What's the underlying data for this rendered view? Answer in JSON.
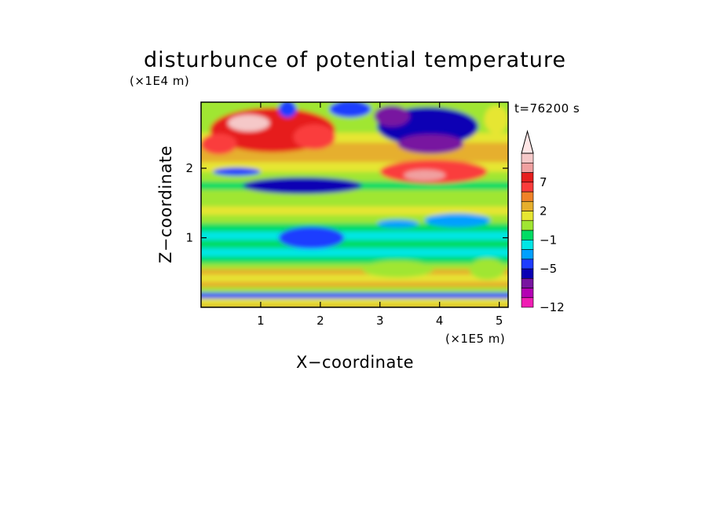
{
  "chart_data": {
    "type": "heatmap",
    "title": "disturbunce of potential temperature",
    "time_label": "t=76200 s",
    "xlabel": "X−coordinate",
    "ylabel": "Z−coordinate",
    "x_unit": "(×1E5 m)",
    "y_unit": "(×1E4 m)",
    "xlim": [
      0,
      5.15
    ],
    "ylim": [
      0,
      2.95
    ],
    "x_ticks": [
      1,
      2,
      3,
      4,
      5
    ],
    "x_tick_labels": [
      "1",
      "2",
      "3",
      "4",
      "5"
    ],
    "y_ticks": [
      1,
      2
    ],
    "y_tick_labels": [
      "1",
      "2"
    ],
    "colorbar": {
      "levels": [
        -12,
        -10,
        -8,
        -6,
        -5,
        -3,
        -2,
        -1,
        0,
        1,
        2,
        3,
        5,
        7,
        8,
        9,
        10
      ],
      "level_labels": [
        {
          "value": -12,
          "label": "−12"
        },
        {
          "value": -5,
          "label": "−5"
        },
        {
          "value": -1,
          "label": "−1"
        },
        {
          "value": 2,
          "label": "2"
        },
        {
          "value": 7,
          "label": "7"
        }
      ],
      "colors": [
        "#f01eb4",
        "#b400b4",
        "#7814a0",
        "#0a00b4",
        "#1e3cff",
        "#00a0ff",
        "#00e6e6",
        "#00dc64",
        "#a0e632",
        "#e6e632",
        "#e6af2d",
        "#f08228",
        "#fa3c3c",
        "#e61e1e",
        "#f0a0a0",
        "#f5c8c8"
      ],
      "extend_max_color": "#ffe6e6"
    },
    "bands": [
      {
        "z": 0.05,
        "value": 2.5
      },
      {
        "z": 0.14,
        "value": 1.5
      },
      {
        "z": 0.22,
        "value": -3.5
      },
      {
        "z": 0.3,
        "value": 0.5
      },
      {
        "z": 0.38,
        "value": 2.5
      },
      {
        "z": 0.48,
        "value": 1.5
      },
      {
        "z": 0.56,
        "value": 2.5
      },
      {
        "z": 0.64,
        "value": 0.5
      },
      {
        "z": 0.74,
        "value": -0.5
      },
      {
        "z": 0.86,
        "value": -1.5
      },
      {
        "z": 0.98,
        "value": -0.5
      },
      {
        "z": 1.1,
        "value": -1.5
      },
      {
        "z": 1.22,
        "value": -0.5
      },
      {
        "z": 1.34,
        "value": 0.5
      },
      {
        "z": 1.46,
        "value": 1.5
      },
      {
        "z": 1.58,
        "value": 0.5
      },
      {
        "z": 1.7,
        "value": 0.5
      },
      {
        "z": 1.82,
        "value": -0.5
      },
      {
        "z": 1.96,
        "value": 0.5
      },
      {
        "z": 2.1,
        "value": 1.5
      },
      {
        "z": 2.24,
        "value": 2.5
      },
      {
        "z": 2.38,
        "value": 2.5
      },
      {
        "z": 2.52,
        "value": 1.5
      },
      {
        "z": 2.66,
        "value": 0.5
      },
      {
        "z": 2.8,
        "value": 0.5
      },
      {
        "z": 2.95,
        "value": 0.5
      }
    ],
    "features": [
      {
        "x": 1.2,
        "z": 2.55,
        "rx": 1.05,
        "rz": 0.32,
        "value": 7.5
      },
      {
        "x": 0.8,
        "z": 2.65,
        "rx": 0.35,
        "rz": 0.12,
        "value": 9.5
      },
      {
        "x": 1.9,
        "z": 2.45,
        "rx": 0.35,
        "rz": 0.18,
        "value": 6
      },
      {
        "x": 0.3,
        "z": 2.35,
        "rx": 0.3,
        "rz": 0.15,
        "value": 5
      },
      {
        "x": 1.7,
        "z": 1.75,
        "rx": 1.0,
        "rz": 0.12,
        "value": -5.5
      },
      {
        "x": 0.6,
        "z": 1.95,
        "rx": 0.4,
        "rz": 0.06,
        "value": -4
      },
      {
        "x": 1.45,
        "z": 2.85,
        "rx": 0.15,
        "rz": 0.12,
        "value": -4
      },
      {
        "x": 3.8,
        "z": 2.6,
        "rx": 0.85,
        "rz": 0.28,
        "value": -5.5
      },
      {
        "x": 3.85,
        "z": 2.35,
        "rx": 0.55,
        "rz": 0.14,
        "value": -8
      },
      {
        "x": 3.2,
        "z": 2.75,
        "rx": 0.3,
        "rz": 0.15,
        "value": -6.5
      },
      {
        "x": 3.9,
        "z": 1.95,
        "rx": 0.9,
        "rz": 0.17,
        "value": 5.5
      },
      {
        "x": 3.75,
        "z": 1.9,
        "rx": 0.35,
        "rz": 0.08,
        "value": 8
      },
      {
        "x": 4.3,
        "z": 1.25,
        "rx": 0.55,
        "rz": 0.1,
        "value": -2.5
      },
      {
        "x": 3.3,
        "z": 1.2,
        "rx": 0.35,
        "rz": 0.06,
        "value": -2.5
      },
      {
        "x": 1.85,
        "z": 1.0,
        "rx": 0.55,
        "rz": 0.16,
        "value": -4
      },
      {
        "x": 3.3,
        "z": 0.55,
        "rx": 0.6,
        "rz": 0.12,
        "value": 0.5
      },
      {
        "x": 4.8,
        "z": 0.55,
        "rx": 0.3,
        "rz": 0.15,
        "value": 0.5
      },
      {
        "x": 4.95,
        "z": 2.7,
        "rx": 0.2,
        "rz": 0.2,
        "value": 1.5
      },
      {
        "x": 2.5,
        "z": 2.85,
        "rx": 0.35,
        "rz": 0.12,
        "value": -4
      }
    ]
  }
}
